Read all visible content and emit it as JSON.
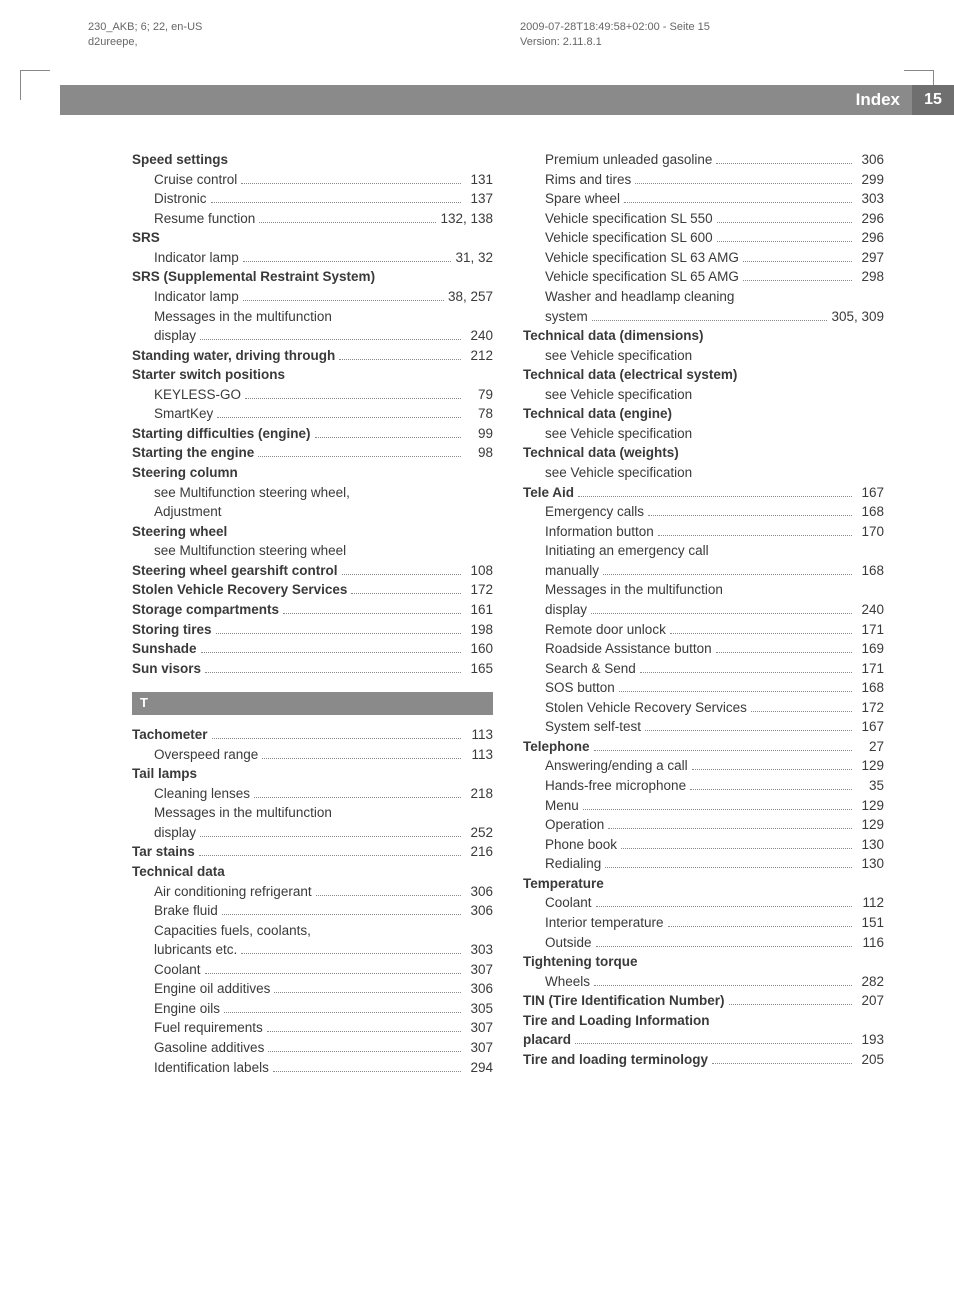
{
  "meta": {
    "left_line1": "230_AKB; 6; 22, en-US",
    "left_line2": "d2ureepe,",
    "right_line1": "2009-07-28T18:49:58+02:00 - Seite 15",
    "right_line2": "Version: 2.11.8.1"
  },
  "titlebar": {
    "title": "Index",
    "page": "15"
  },
  "section_letter": "T",
  "col1": [
    {
      "t": "row",
      "bold": true,
      "label": "Speed settings"
    },
    {
      "t": "row",
      "sub": true,
      "label": "Cruise control",
      "pages": "131"
    },
    {
      "t": "row",
      "sub": true,
      "label": "Distronic",
      "pages": "137"
    },
    {
      "t": "row",
      "sub": true,
      "label": "Resume function",
      "pages": "132, 138"
    },
    {
      "t": "row",
      "bold": true,
      "label": "SRS"
    },
    {
      "t": "row",
      "sub": true,
      "label": "Indicator lamp",
      "pages": "31, 32"
    },
    {
      "t": "row",
      "bold": true,
      "label": "SRS (Supplemental Restraint System)"
    },
    {
      "t": "row",
      "sub": true,
      "label": "Indicator lamp",
      "pages": "38, 257"
    },
    {
      "t": "cont",
      "sub": true,
      "label": "Messages in the multifunction"
    },
    {
      "t": "row",
      "sub": true,
      "label": "display",
      "pages": "240"
    },
    {
      "t": "row",
      "bold": true,
      "label": "Standing water, driving through",
      "pages": "212"
    },
    {
      "t": "row",
      "bold": true,
      "label": "Starter switch positions"
    },
    {
      "t": "row",
      "sub": true,
      "label": "KEYLESS-GO",
      "pages": "79"
    },
    {
      "t": "row",
      "sub": true,
      "label": "SmartKey",
      "pages": "78"
    },
    {
      "t": "row",
      "bold": true,
      "label": "Starting difficulties (engine)",
      "pages": "99"
    },
    {
      "t": "row",
      "bold": true,
      "label": "Starting the engine",
      "pages": "98"
    },
    {
      "t": "row",
      "bold": true,
      "label": "Steering column"
    },
    {
      "t": "cont",
      "sub": true,
      "label": "see Multifunction steering wheel,"
    },
    {
      "t": "cont",
      "sub": true,
      "label": "Adjustment"
    },
    {
      "t": "row",
      "bold": true,
      "label": "Steering wheel"
    },
    {
      "t": "cont",
      "sub": true,
      "label": "see Multifunction steering wheel"
    },
    {
      "t": "row",
      "bold": true,
      "label": "Steering wheel gearshift control",
      "pages": "108"
    },
    {
      "t": "row",
      "bold": true,
      "label": "Stolen Vehicle Recovery Services",
      "pages": "172"
    },
    {
      "t": "row",
      "bold": true,
      "label": "Storage compartments",
      "pages": "161"
    },
    {
      "t": "row",
      "bold": true,
      "label": "Storing tires",
      "pages": "198"
    },
    {
      "t": "row",
      "bold": true,
      "label": "Sunshade",
      "pages": "160"
    },
    {
      "t": "row",
      "bold": true,
      "label": "Sun visors",
      "pages": "165"
    },
    {
      "t": "letter"
    },
    {
      "t": "row",
      "bold": true,
      "label": "Tachometer",
      "pages": "113"
    },
    {
      "t": "row",
      "sub": true,
      "label": "Overspeed range",
      "pages": "113"
    },
    {
      "t": "row",
      "bold": true,
      "label": "Tail lamps"
    },
    {
      "t": "row",
      "sub": true,
      "label": "Cleaning lenses",
      "pages": "218"
    },
    {
      "t": "cont",
      "sub": true,
      "label": "Messages in the multifunction"
    },
    {
      "t": "row",
      "sub": true,
      "label": "display",
      "pages": "252"
    },
    {
      "t": "row",
      "bold": true,
      "label": "Tar stains",
      "pages": "216"
    },
    {
      "t": "row",
      "bold": true,
      "label": "Technical data"
    },
    {
      "t": "row",
      "sub": true,
      "label": "Air conditioning refrigerant",
      "pages": "306"
    },
    {
      "t": "row",
      "sub": true,
      "label": "Brake fluid",
      "pages": "306"
    },
    {
      "t": "cont",
      "sub": true,
      "label": "Capacities fuels, coolants,"
    },
    {
      "t": "row",
      "sub": true,
      "label": "lubricants etc.",
      "pages": "303"
    },
    {
      "t": "row",
      "sub": true,
      "label": "Coolant",
      "pages": "307"
    },
    {
      "t": "row",
      "sub": true,
      "label": "Engine oil additives",
      "pages": "306"
    },
    {
      "t": "row",
      "sub": true,
      "label": "Engine oils",
      "pages": "305"
    },
    {
      "t": "row",
      "sub": true,
      "label": "Fuel requirements",
      "pages": "307"
    },
    {
      "t": "row",
      "sub": true,
      "label": "Gasoline additives",
      "pages": "307"
    },
    {
      "t": "row",
      "sub": true,
      "label": "Identification labels",
      "pages": "294"
    }
  ],
  "col2": [
    {
      "t": "row",
      "sub": true,
      "label": "Premium unleaded gasoline",
      "pages": "306"
    },
    {
      "t": "row",
      "sub": true,
      "label": "Rims and tires",
      "pages": "299"
    },
    {
      "t": "row",
      "sub": true,
      "label": "Spare wheel",
      "pages": "303"
    },
    {
      "t": "row",
      "sub": true,
      "label": "Vehicle specification SL 550",
      "pages": "296"
    },
    {
      "t": "row",
      "sub": true,
      "label": "Vehicle specification SL 600",
      "pages": "296"
    },
    {
      "t": "row",
      "sub": true,
      "label": "Vehicle specification SL 63 AMG",
      "pages": "297"
    },
    {
      "t": "row",
      "sub": true,
      "label": "Vehicle specification SL 65 AMG",
      "pages": "298"
    },
    {
      "t": "cont",
      "sub": true,
      "label": "Washer and headlamp cleaning"
    },
    {
      "t": "row",
      "sub": true,
      "label": "system",
      "pages": "305, 309"
    },
    {
      "t": "row",
      "bold": true,
      "label": "Technical data (dimensions)"
    },
    {
      "t": "cont",
      "sub": true,
      "label": "see Vehicle specification"
    },
    {
      "t": "row",
      "bold": true,
      "label": "Technical data (electrical system)"
    },
    {
      "t": "cont",
      "sub": true,
      "label": "see Vehicle specification"
    },
    {
      "t": "row",
      "bold": true,
      "label": "Technical data (engine)"
    },
    {
      "t": "cont",
      "sub": true,
      "label": "see Vehicle specification"
    },
    {
      "t": "row",
      "bold": true,
      "label": "Technical data (weights)"
    },
    {
      "t": "cont",
      "sub": true,
      "label": "see Vehicle specification"
    },
    {
      "t": "row",
      "bold": true,
      "label": "Tele Aid",
      "pages": "167"
    },
    {
      "t": "row",
      "sub": true,
      "label": "Emergency calls",
      "pages": "168"
    },
    {
      "t": "row",
      "sub": true,
      "label": "Information button",
      "pages": "170"
    },
    {
      "t": "cont",
      "sub": true,
      "label": "Initiating an emergency call"
    },
    {
      "t": "row",
      "sub": true,
      "label": "manually",
      "pages": "168"
    },
    {
      "t": "cont",
      "sub": true,
      "label": "Messages in the multifunction"
    },
    {
      "t": "row",
      "sub": true,
      "label": "display",
      "pages": "240"
    },
    {
      "t": "row",
      "sub": true,
      "label": "Remote door unlock",
      "pages": "171"
    },
    {
      "t": "row",
      "sub": true,
      "label": "Roadside Assistance button",
      "pages": "169"
    },
    {
      "t": "row",
      "sub": true,
      "label": "Search & Send",
      "pages": "171"
    },
    {
      "t": "row",
      "sub": true,
      "label": "SOS button",
      "pages": "168"
    },
    {
      "t": "row",
      "sub": true,
      "label": "Stolen Vehicle Recovery Services",
      "pages": "172"
    },
    {
      "t": "row",
      "sub": true,
      "label": "System self-test",
      "pages": "167"
    },
    {
      "t": "row",
      "bold": true,
      "label": "Telephone",
      "pages": "27"
    },
    {
      "t": "row",
      "sub": true,
      "label": "Answering/ending a call",
      "pages": "129"
    },
    {
      "t": "row",
      "sub": true,
      "label": "Hands-free microphone",
      "pages": "35"
    },
    {
      "t": "row",
      "sub": true,
      "label": "Menu",
      "pages": "129"
    },
    {
      "t": "row",
      "sub": true,
      "label": "Operation",
      "pages": "129"
    },
    {
      "t": "row",
      "sub": true,
      "label": "Phone book",
      "pages": "130"
    },
    {
      "t": "row",
      "sub": true,
      "label": "Redialing",
      "pages": "130"
    },
    {
      "t": "row",
      "bold": true,
      "label": "Temperature"
    },
    {
      "t": "row",
      "sub": true,
      "label": "Coolant",
      "pages": "112"
    },
    {
      "t": "row",
      "sub": true,
      "label": "Interior temperature",
      "pages": "151"
    },
    {
      "t": "row",
      "sub": true,
      "label": "Outside",
      "pages": "116"
    },
    {
      "t": "row",
      "bold": true,
      "label": "Tightening torque"
    },
    {
      "t": "row",
      "sub": true,
      "label": "Wheels",
      "pages": "282"
    },
    {
      "t": "row",
      "bold": true,
      "label": "TIN (Tire Identification Number)",
      "pages": "207"
    },
    {
      "t": "cont",
      "bold": true,
      "label": "Tire and Loading Information"
    },
    {
      "t": "row",
      "bold": true,
      "label": "placard",
      "pages": "193"
    },
    {
      "t": "row",
      "bold": true,
      "label": "Tire and loading terminology",
      "pages": "205"
    }
  ]
}
